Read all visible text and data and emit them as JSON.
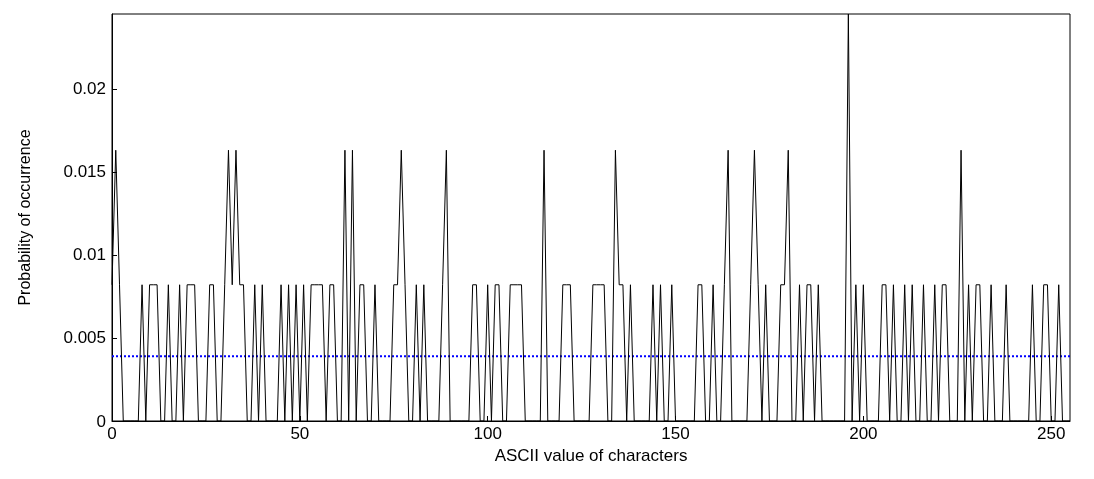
{
  "chart_data": {
    "type": "line",
    "xlabel": "ASCII value of characters",
    "ylabel": "Probability of occurrence",
    "x": [
      0,
      1,
      2,
      3,
      4,
      5,
      6,
      7,
      8,
      9,
      10,
      11,
      12,
      13,
      14,
      15,
      16,
      17,
      18,
      19,
      20,
      21,
      22,
      23,
      24,
      25,
      26,
      27,
      28,
      29,
      30,
      31,
      32,
      33,
      34,
      35,
      36,
      37,
      38,
      39,
      40,
      41,
      42,
      43,
      44,
      45,
      46,
      47,
      48,
      49,
      50,
      51,
      52,
      53,
      54,
      55,
      56,
      57,
      58,
      59,
      60,
      61,
      62,
      63,
      64,
      65,
      66,
      67,
      68,
      69,
      70,
      71,
      72,
      73,
      74,
      75,
      76,
      77,
      78,
      79,
      80,
      81,
      82,
      83,
      84,
      85,
      86,
      87,
      88,
      89,
      90,
      91,
      92,
      93,
      94,
      95,
      96,
      97,
      98,
      99,
      100,
      101,
      102,
      103,
      104,
      105,
      106,
      107,
      108,
      109,
      110,
      111,
      112,
      113,
      114,
      115,
      116,
      117,
      118,
      119,
      120,
      121,
      122,
      123,
      124,
      125,
      126,
      127,
      128,
      129,
      130,
      131,
      132,
      133,
      134,
      135,
      136,
      137,
      138,
      139,
      140,
      141,
      142,
      143,
      144,
      145,
      146,
      147,
      148,
      149,
      150,
      151,
      152,
      153,
      154,
      155,
      156,
      157,
      158,
      159,
      160,
      161,
      162,
      163,
      164,
      165,
      166,
      167,
      168,
      169,
      170,
      171,
      172,
      173,
      174,
      175,
      176,
      177,
      178,
      179,
      180,
      181,
      182,
      183,
      184,
      185,
      186,
      187,
      188,
      189,
      190,
      191,
      192,
      193,
      194,
      195,
      196,
      197,
      198,
      199,
      200,
      201,
      202,
      203,
      204,
      205,
      206,
      207,
      208,
      209,
      210,
      211,
      212,
      213,
      214,
      215,
      216,
      217,
      218,
      219,
      220,
      221,
      222,
      223,
      224,
      225,
      226,
      227,
      228,
      229,
      230,
      231,
      232,
      233,
      234,
      235,
      236,
      237,
      238,
      239,
      240,
      241,
      242,
      243,
      244,
      245,
      246,
      247,
      248,
      249,
      250,
      251,
      252,
      253,
      254,
      255
    ],
    "series": [
      {
        "color": "#000000",
        "values": [
          0.0082,
          0.0163,
          0.0082,
          0,
          0,
          0,
          0,
          0,
          0.0082,
          0,
          0.0082,
          0.0082,
          0.0082,
          0,
          0,
          0.0082,
          0,
          0,
          0.0082,
          0,
          0.0082,
          0.0082,
          0.0082,
          0,
          0,
          0,
          0.0082,
          0.0082,
          0,
          0,
          0.0082,
          0.0163,
          0.0082,
          0.0163,
          0.0082,
          0.0082,
          0,
          0,
          0.0082,
          0,
          0.0082,
          0,
          0,
          0,
          0,
          0.0082,
          0,
          0.0082,
          0,
          0.0082,
          0,
          0.0082,
          0,
          0.0082,
          0.0082,
          0.0082,
          0.0082,
          0,
          0.0082,
          0.0082,
          0,
          0,
          0.0163,
          0,
          0.0163,
          0,
          0.0082,
          0.0082,
          0,
          0,
          0.0082,
          0,
          0,
          0,
          0,
          0.0082,
          0.0082,
          0.0163,
          0.0082,
          0,
          0,
          0.0082,
          0,
          0.0082,
          0,
          0,
          0,
          0,
          0.0082,
          0.0163,
          0,
          0,
          0,
          0,
          0,
          0,
          0.0082,
          0.0082,
          0,
          0,
          0.0082,
          0,
          0.0082,
          0.0082,
          0,
          0,
          0.0082,
          0.0082,
          0.0082,
          0.0082,
          0,
          0,
          0,
          0,
          0,
          0.0163,
          0,
          0,
          0,
          0,
          0.0082,
          0.0082,
          0.0082,
          0,
          0,
          0,
          0,
          0,
          0.0082,
          0.0082,
          0.0082,
          0.0082,
          0,
          0,
          0.0163,
          0.0082,
          0.0082,
          0,
          0.0082,
          0,
          0,
          0,
          0,
          0,
          0.0082,
          0,
          0.0082,
          0,
          0,
          0.0082,
          0,
          0,
          0,
          0,
          0,
          0,
          0.0082,
          0.0082,
          0,
          0,
          0.0082,
          0,
          0,
          0.0082,
          0.0163,
          0,
          0,
          0,
          0,
          0,
          0.0082,
          0.0163,
          0.0082,
          0,
          0.0082,
          0,
          0,
          0,
          0.0082,
          0.0082,
          0.0163,
          0,
          0,
          0.0082,
          0,
          0.0082,
          0.0082,
          0,
          0.0082,
          0,
          0,
          0,
          0,
          0,
          0,
          0,
          0.0245,
          0,
          0.0082,
          0,
          0.0082,
          0,
          0,
          0,
          0,
          0.0082,
          0.0082,
          0,
          0.0082,
          0,
          0,
          0.0082,
          0,
          0.0082,
          0,
          0,
          0.0082,
          0,
          0,
          0.0082,
          0,
          0.0082,
          0.0082,
          0,
          0,
          0,
          0.0163,
          0,
          0.0082,
          0,
          0.0082,
          0.0082,
          0,
          0,
          0.0082,
          0,
          0,
          0,
          0.0082,
          0,
          0,
          0,
          0,
          0,
          0,
          0.0082,
          0,
          0,
          0.0082,
          0.0082,
          0,
          0,
          0.0082,
          0,
          0,
          0
        ]
      }
    ],
    "xlim": [
      0,
      255
    ],
    "xticks": [
      0,
      50,
      100,
      150,
      200,
      250
    ],
    "ylim": [
      0,
      0.0245
    ],
    "yticks": [
      0,
      0.005,
      0.01,
      0.015,
      0.02
    ],
    "marker": "none",
    "ref_lines": [
      {
        "axis": "y",
        "value": 0.0039,
        "color": "#0000ff",
        "line_style": "dotted"
      }
    ]
  }
}
